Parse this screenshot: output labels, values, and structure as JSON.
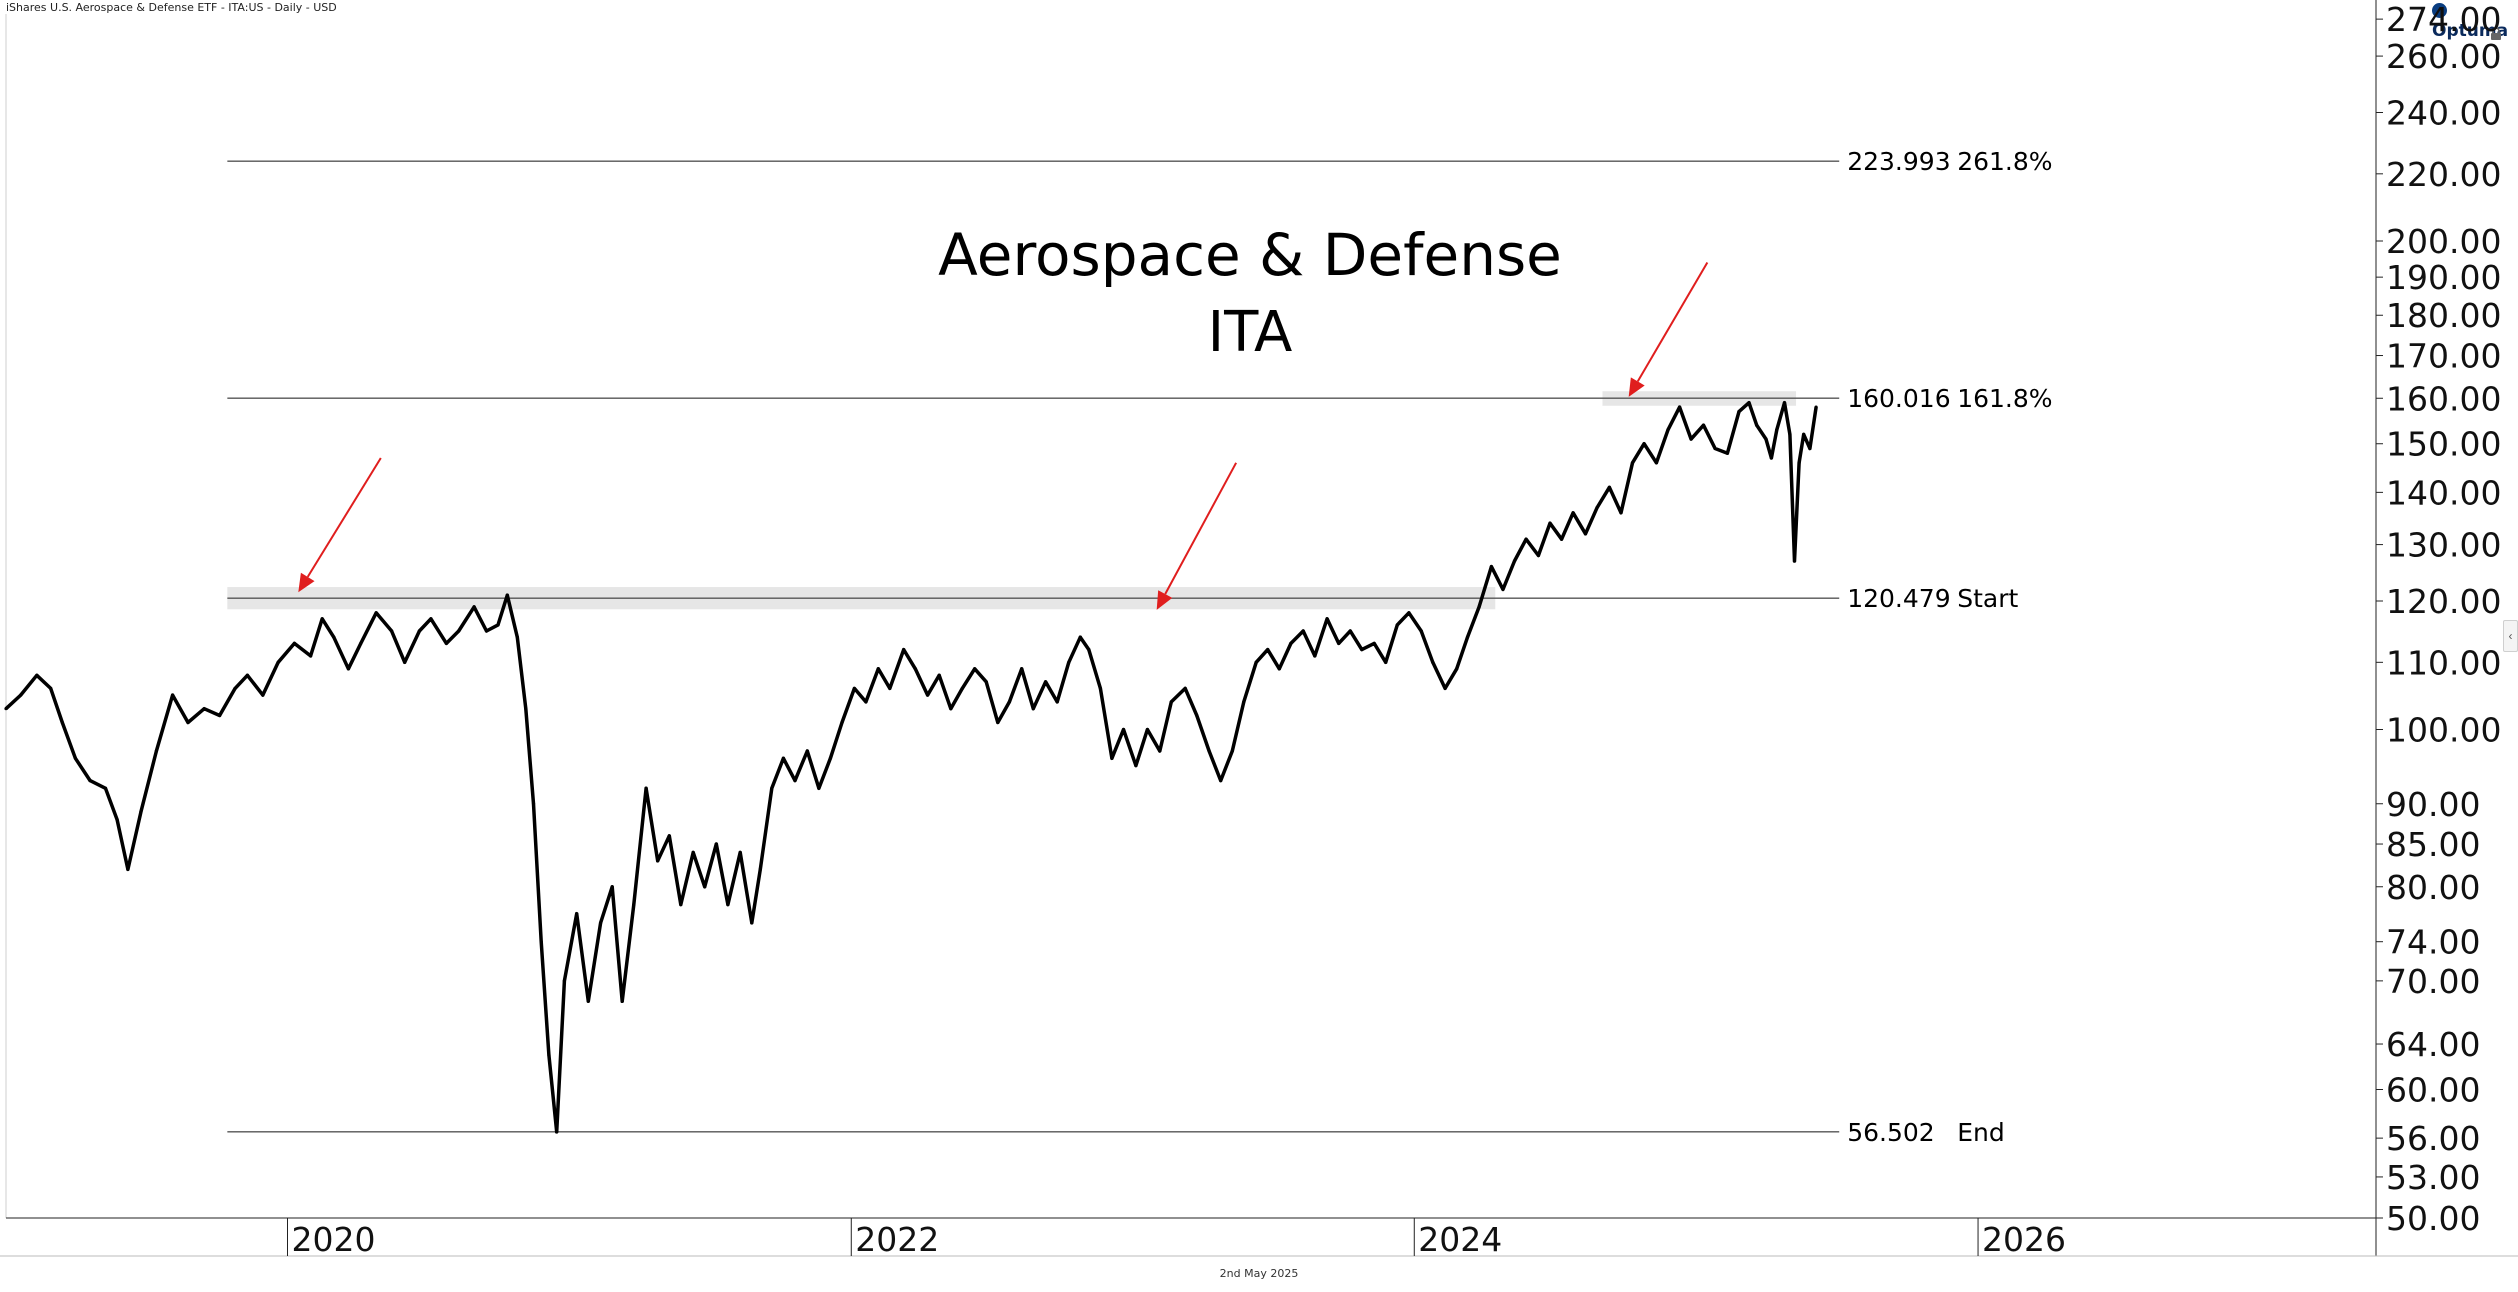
{
  "header": {
    "instrument": "iShares U.S. Aerospace & Defense ETF - ITA:US - Daily - USD",
    "brand": "Optuma"
  },
  "footer": {
    "date": "2nd May 2025"
  },
  "colors": {
    "price": "#000000",
    "arrow": "#e01e1e",
    "level_line": "#555555",
    "zone": "#e6e6e6",
    "axis": "#222222"
  },
  "icons": {
    "lock": "lock-icon",
    "collapse": "chevron-left-icon"
  },
  "chart_data": {
    "type": "line",
    "title": "Aerospace & Defense",
    "subtitle": "ITA",
    "scale": "log",
    "ylim": [
      50,
      276
    ],
    "xlim": [
      "2019-01-01",
      "2027-06-01"
    ],
    "grid": false,
    "y_ticks": [
      "274.00",
      "260.00",
      "240.00",
      "220.00",
      "200.00",
      "190.00",
      "180.00",
      "170.00",
      "160.00",
      "150.00",
      "140.00",
      "130.00",
      "120.00",
      "110.00",
      "100.00",
      "90.00",
      "85.00",
      "80.00",
      "74.00",
      "70.00",
      "64.00",
      "60.00",
      "56.00",
      "53.00",
      "50.00"
    ],
    "x_ticks": [
      {
        "label": "2020",
        "date": "2020-01-01"
      },
      {
        "label": "2022",
        "date": "2022-01-01"
      },
      {
        "label": "2024",
        "date": "2024-01-01"
      },
      {
        "label": "2026",
        "date": "2026-01-01"
      }
    ],
    "fib_levels": [
      {
        "value": 223.993,
        "value_label": "223.993",
        "label": "261.8%"
      },
      {
        "value": 160.016,
        "value_label": "160.016",
        "label": "161.8%"
      },
      {
        "value": 120.479,
        "value_label": "120.479",
        "label": "Start"
      },
      {
        "value": 56.502,
        "value_label": "56.502",
        "label": "End"
      }
    ],
    "zones": [
      {
        "from": "2019-10-15",
        "to": "2024-04-15",
        "low": 118.6,
        "high": 122.4
      },
      {
        "from": "2024-09-01",
        "to": "2025-05-10",
        "low": 158.3,
        "high": 161.6
      }
    ],
    "arrows": [
      {
        "tip": [
          "2020-01-15",
          121.5
        ],
        "tail": [
          "2020-05-01",
          147
        ]
      },
      {
        "tip": [
          "2023-02-01",
          118.5
        ],
        "tail": [
          "2023-05-15",
          146
        ]
      },
      {
        "tip": [
          "2024-10-05",
          160.3
        ],
        "tail": [
          "2025-01-15",
          194
        ]
      }
    ],
    "series": [
      {
        "points": [
          [
            "2019-01-01",
            103
          ],
          [
            "2019-01-20",
            105
          ],
          [
            "2019-02-10",
            108
          ],
          [
            "2019-02-28",
            106
          ],
          [
            "2019-03-15",
            101
          ],
          [
            "2019-04-01",
            96
          ],
          [
            "2019-04-20",
            93
          ],
          [
            "2019-05-10",
            92
          ],
          [
            "2019-05-25",
            88
          ],
          [
            "2019-06-08",
            82
          ],
          [
            "2019-06-25",
            89
          ],
          [
            "2019-07-15",
            97
          ],
          [
            "2019-08-05",
            105
          ],
          [
            "2019-08-25",
            101
          ],
          [
            "2019-09-15",
            103
          ],
          [
            "2019-10-05",
            102
          ],
          [
            "2019-10-25",
            106
          ],
          [
            "2019-11-10",
            108
          ],
          [
            "2019-11-30",
            105
          ],
          [
            "2019-12-20",
            110
          ],
          [
            "2020-01-10",
            113
          ],
          [
            "2020-01-31",
            111
          ],
          [
            "2020-02-15",
            117
          ],
          [
            "2020-03-01",
            114
          ],
          [
            "2020-03-20",
            109
          ],
          [
            "2020-04-05",
            113
          ],
          [
            "2020-04-25",
            118
          ],
          [
            "2020-05-15",
            115
          ],
          [
            "2020-06-01",
            110
          ],
          [
            "2020-06-20",
            115
          ],
          [
            "2020-07-05",
            117
          ],
          [
            "2020-07-25",
            113
          ],
          [
            "2020-08-10",
            115
          ],
          [
            "2020-08-30",
            119
          ],
          [
            "2020-09-15",
            115
          ],
          [
            "2020-09-30",
            116
          ],
          [
            "2020-10-12",
            121
          ],
          [
            "2020-10-25",
            114
          ],
          [
            "2020-11-05",
            103
          ],
          [
            "2020-11-15",
            90
          ],
          [
            "2020-11-25",
            74
          ],
          [
            "2020-12-05",
            63
          ],
          [
            "2020-12-15",
            56.5
          ],
          [
            "2020-12-25",
            70
          ],
          [
            "2021-01-10",
            77
          ],
          [
            "2021-01-25",
            68
          ],
          [
            "2021-02-10",
            76
          ],
          [
            "2021-02-25",
            80
          ],
          [
            "2021-03-10",
            68
          ],
          [
            "2021-03-25",
            78
          ],
          [
            "2021-04-10",
            92
          ],
          [
            "2021-04-25",
            83
          ],
          [
            "2021-05-10",
            86
          ],
          [
            "2021-05-25",
            78
          ],
          [
            "2021-06-10",
            84
          ],
          [
            "2021-06-25",
            80
          ],
          [
            "2021-07-10",
            85
          ],
          [
            "2021-07-25",
            78
          ],
          [
            "2021-08-10",
            84
          ],
          [
            "2021-08-25",
            76
          ],
          [
            "2021-09-05",
            82
          ],
          [
            "2021-09-20",
            92
          ],
          [
            "2021-10-05",
            96
          ],
          [
            "2021-10-20",
            93
          ],
          [
            "2021-11-05",
            97
          ],
          [
            "2021-11-20",
            92
          ],
          [
            "2021-12-05",
            96
          ],
          [
            "2021-12-20",
            101
          ],
          [
            "2022-01-05",
            106
          ],
          [
            "2022-01-20",
            104
          ],
          [
            "2022-02-05",
            109
          ],
          [
            "2022-02-20",
            106
          ],
          [
            "2022-03-10",
            112
          ],
          [
            "2022-03-25",
            109
          ],
          [
            "2022-04-10",
            105
          ],
          [
            "2022-04-25",
            108
          ],
          [
            "2022-05-10",
            103
          ],
          [
            "2022-05-25",
            106
          ],
          [
            "2022-06-10",
            109
          ],
          [
            "2022-06-25",
            107
          ],
          [
            "2022-07-10",
            101
          ],
          [
            "2022-07-25",
            104
          ],
          [
            "2022-08-10",
            109
          ],
          [
            "2022-08-25",
            103
          ],
          [
            "2022-09-10",
            107
          ],
          [
            "2022-09-25",
            104
          ],
          [
            "2022-10-10",
            110
          ],
          [
            "2022-10-25",
            114
          ],
          [
            "2022-11-05",
            112
          ],
          [
            "2022-11-20",
            106
          ],
          [
            "2022-12-05",
            96
          ],
          [
            "2022-12-20",
            100
          ],
          [
            "2023-01-05",
            95
          ],
          [
            "2023-01-20",
            100
          ],
          [
            "2023-02-05",
            97
          ],
          [
            "2023-02-20",
            104
          ],
          [
            "2023-03-10",
            106
          ],
          [
            "2023-03-25",
            102
          ],
          [
            "2023-04-10",
            97
          ],
          [
            "2023-04-25",
            93
          ],
          [
            "2023-05-10",
            97
          ],
          [
            "2023-05-25",
            104
          ],
          [
            "2023-06-10",
            110
          ],
          [
            "2023-06-25",
            112
          ],
          [
            "2023-07-10",
            109
          ],
          [
            "2023-07-25",
            113
          ],
          [
            "2023-08-10",
            115
          ],
          [
            "2023-08-25",
            111
          ],
          [
            "2023-09-10",
            117
          ],
          [
            "2023-09-25",
            113
          ],
          [
            "2023-10-10",
            115
          ],
          [
            "2023-10-25",
            112
          ],
          [
            "2023-11-10",
            113
          ],
          [
            "2023-11-25",
            110
          ],
          [
            "2023-12-10",
            116
          ],
          [
            "2023-12-25",
            118
          ],
          [
            "2024-01-10",
            115
          ],
          [
            "2024-01-25",
            110
          ],
          [
            "2024-02-10",
            106
          ],
          [
            "2024-02-25",
            109
          ],
          [
            "2024-03-10",
            114
          ],
          [
            "2024-03-25",
            119
          ],
          [
            "2024-04-10",
            126
          ],
          [
            "2024-04-25",
            122
          ],
          [
            "2024-05-10",
            127
          ],
          [
            "2024-05-25",
            131
          ],
          [
            "2024-06-10",
            128
          ],
          [
            "2024-06-25",
            134
          ],
          [
            "2024-07-10",
            131
          ],
          [
            "2024-07-25",
            136
          ],
          [
            "2024-08-10",
            132
          ],
          [
            "2024-08-25",
            137
          ],
          [
            "2024-09-10",
            141
          ],
          [
            "2024-09-25",
            136
          ],
          [
            "2024-10-10",
            146
          ],
          [
            "2024-10-25",
            150
          ],
          [
            "2024-11-10",
            146
          ],
          [
            "2024-11-25",
            153
          ],
          [
            "2024-12-10",
            158
          ],
          [
            "2024-12-25",
            151
          ],
          [
            "2025-01-10",
            154
          ],
          [
            "2025-01-25",
            149
          ],
          [
            "2025-02-10",
            148
          ],
          [
            "2025-02-25",
            157
          ],
          [
            "2025-03-10",
            159
          ],
          [
            "2025-03-20",
            154
          ],
          [
            "2025-04-01",
            151
          ],
          [
            "2025-04-08",
            147
          ],
          [
            "2025-04-15",
            153
          ],
          [
            "2025-04-25",
            159
          ],
          [
            "2025-05-02",
            152
          ],
          [
            "2025-05-08",
            127
          ],
          [
            "2025-05-14",
            146
          ],
          [
            "2025-05-20",
            152
          ],
          [
            "2025-05-28",
            149
          ],
          [
            "2025-06-05",
            158
          ]
        ]
      }
    ]
  }
}
